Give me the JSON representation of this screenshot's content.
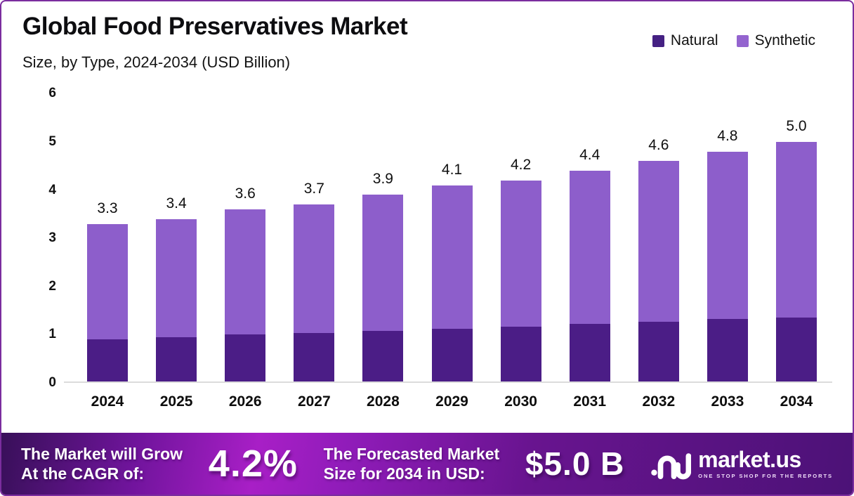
{
  "header": {
    "title": "Global Food Preservatives Market",
    "subtitle": "Size, by Type, 2024-2034 (USD Billion)"
  },
  "legend": [
    {
      "label": "Natural",
      "color": "#452183"
    },
    {
      "label": "Synthetic",
      "color": "#9464cf"
    }
  ],
  "chart_data": {
    "type": "bar",
    "stacked": true,
    "title": "Global Food Preservatives Market Size, by Type, 2024-2034 (USD Billion)",
    "categories": [
      "2024",
      "2025",
      "2026",
      "2027",
      "2028",
      "2029",
      "2030",
      "2031",
      "2032",
      "2033",
      "2034"
    ],
    "series": [
      {
        "name": "Natural",
        "color": "#4b1d86",
        "values": [
          0.9,
          0.95,
          1.0,
          1.04,
          1.08,
          1.12,
          1.17,
          1.22,
          1.27,
          1.32,
          1.36
        ]
      },
      {
        "name": "Synthetic",
        "color": "#8d5ecb",
        "values": [
          2.4,
          2.45,
          2.6,
          2.66,
          2.82,
          2.98,
          3.03,
          3.18,
          3.33,
          3.48,
          3.64
        ]
      }
    ],
    "totals": [
      3.3,
      3.4,
      3.6,
      3.7,
      3.9,
      4.1,
      4.2,
      4.4,
      4.6,
      4.8,
      5.0
    ],
    "xlabel": "",
    "ylabel": "",
    "ylim": [
      0,
      6
    ],
    "yticks": [
      0,
      1,
      2,
      3,
      4,
      5,
      6
    ],
    "grid": false,
    "legend_position": "top-right"
  },
  "banner": {
    "cagr_label_line1": "The Market will Grow",
    "cagr_label_line2": "At the CAGR of:",
    "cagr_value": "4.2%",
    "forecast_label_line1": "The Forecasted Market",
    "forecast_label_line2": "Size for 2034 in USD:",
    "forecast_value": "$5.0 B",
    "logo": {
      "text": "market.us",
      "tagline": "ONE STOP SHOP FOR THE REPORTS"
    }
  },
  "colors": {
    "frame_border": "#7b2d9e",
    "natural_bar": "#4b1d86",
    "synthetic_bar": "#8d5ecb",
    "banner_bright": "#a81fc6",
    "banner_dark": "#3b1563"
  }
}
